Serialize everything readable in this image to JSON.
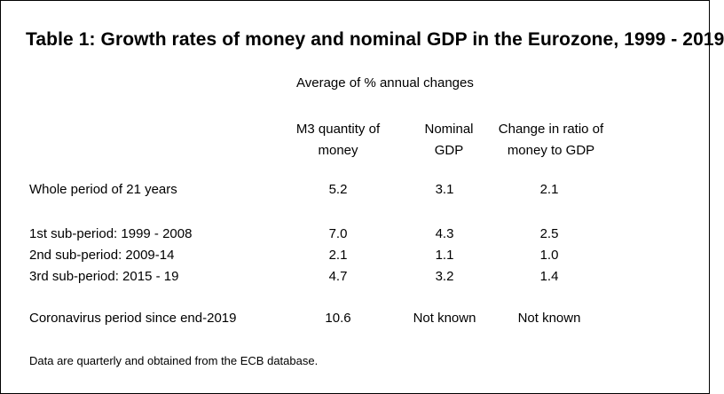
{
  "table": {
    "title": "Table 1: Growth rates of money and nominal GDP in the Eurozone, 1999 - 2019",
    "subtitle": "Average of % annual changes",
    "columns": [
      {
        "line1": "M3 quantity of",
        "line2": "money"
      },
      {
        "line1": "Nominal",
        "line2": "GDP"
      },
      {
        "line1": "Change in ratio of",
        "line2": "money to GDP"
      }
    ],
    "rows": [
      {
        "label": "Whole period of 21 years",
        "m3": "5.2",
        "gdp": "3.1",
        "ratio": "2.1"
      },
      {
        "label": "1st sub-period: 1999 - 2008",
        "m3": "7.0",
        "gdp": "4.3",
        "ratio": "2.5"
      },
      {
        "label": "2nd sub-period: 2009-14",
        "m3": "2.1",
        "gdp": "1.1",
        "ratio": "1.0"
      },
      {
        "label": "3rd sub-period: 2015 - 19",
        "m3": "4.7",
        "gdp": "3.2",
        "ratio": "1.4"
      },
      {
        "label": "Coronavirus period since end-2019",
        "m3": "10.6",
        "gdp": "Not known",
        "ratio": "Not known"
      }
    ],
    "footnote": "Data are quarterly and obtained from the ECB database."
  }
}
